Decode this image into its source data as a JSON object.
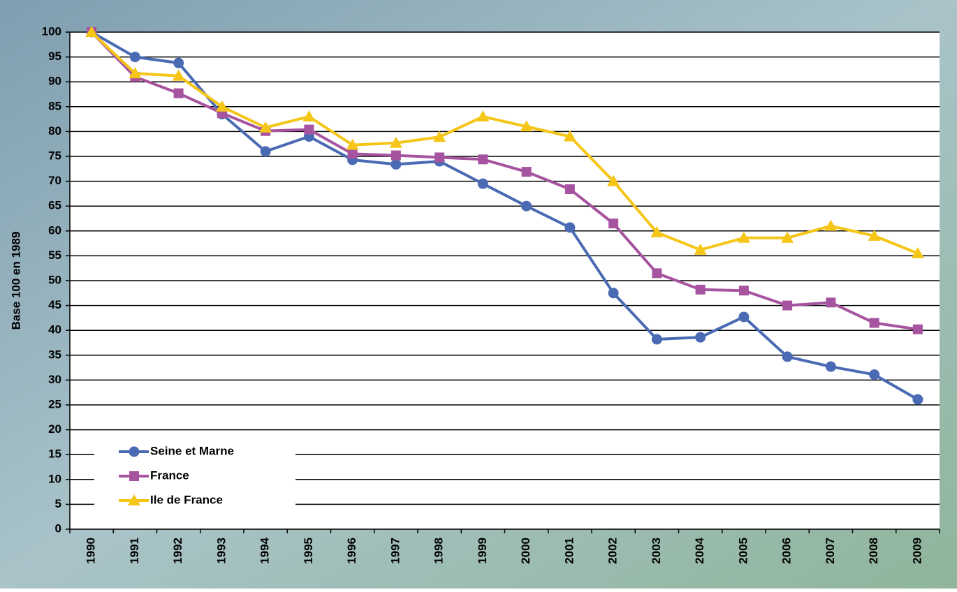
{
  "chart_data": {
    "type": "line",
    "y_label": "Base 100 en 1989",
    "categories": [
      "1990",
      "1991",
      "1992",
      "1993",
      "1994",
      "1995",
      "1996",
      "1997",
      "1998",
      "1999",
      "2000",
      "2001",
      "2002",
      "2003",
      "2004",
      "2005",
      "2006",
      "2007",
      "2008",
      "2009"
    ],
    "series": [
      {
        "name": "Seine et Marne",
        "color": "#4a6ab3",
        "marker": "circle",
        "values": [
          100,
          95,
          93.8,
          83.5,
          76,
          79,
          74.3,
          73.4,
          74,
          69.5,
          65,
          60.7,
          47.5,
          38.2,
          38.6,
          42.7,
          34.7,
          32.7,
          31.1,
          26.1
        ]
      },
      {
        "name": "France",
        "color": "#a653a0",
        "marker": "square",
        "values": [
          100,
          91,
          87.7,
          83.7,
          80.1,
          80.4,
          75.5,
          75.2,
          74.8,
          74.4,
          71.9,
          68.4,
          61.5,
          51.5,
          48.2,
          48,
          45,
          45.6,
          41.5,
          40.2
        ]
      },
      {
        "name": "Ile de France",
        "color": "#f5c518",
        "marker": "triangle",
        "values": [
          100,
          91.7,
          91.2,
          85,
          80.8,
          83,
          77.3,
          77.7,
          78.9,
          83,
          81,
          79,
          70,
          59.7,
          56.2,
          58.6,
          58.6,
          61,
          59,
          55.5
        ]
      }
    ],
    "ylim": [
      0,
      100
    ],
    "yticks": [
      0,
      5,
      10,
      15,
      20,
      25,
      30,
      35,
      40,
      45,
      50,
      55,
      60,
      65,
      70,
      75,
      80,
      85,
      90,
      95,
      100
    ],
    "grid": true,
    "legend": "lower left"
  }
}
